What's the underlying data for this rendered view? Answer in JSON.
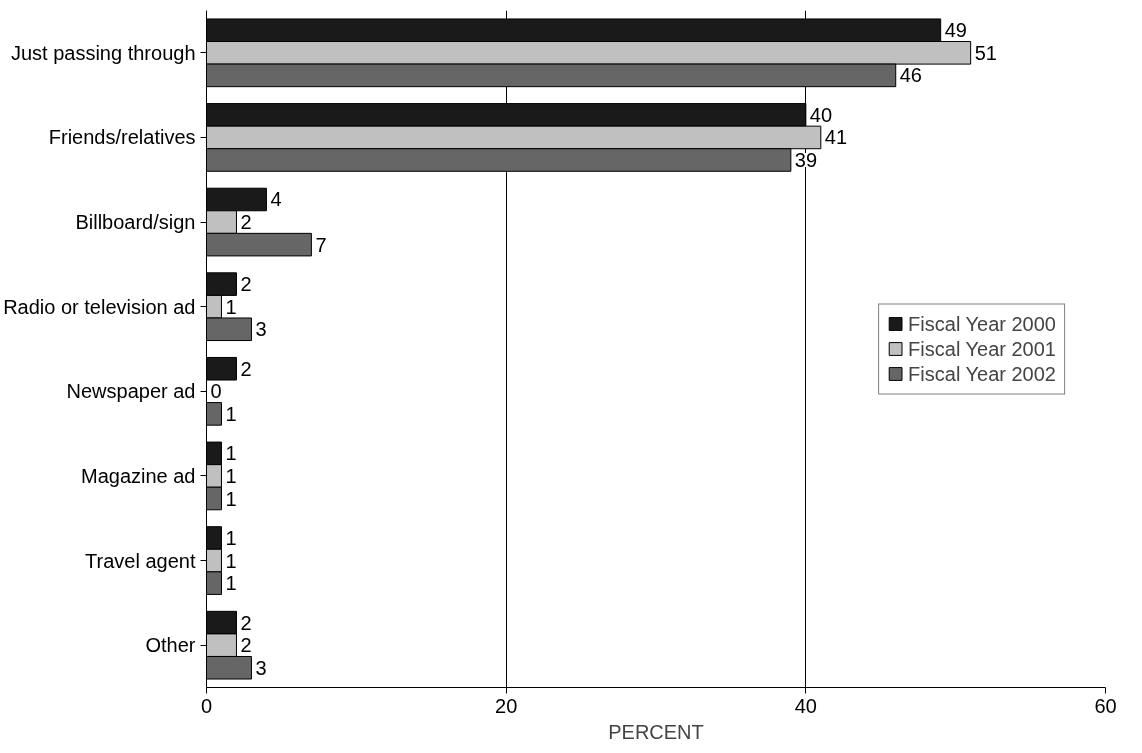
{
  "chart_data": {
    "type": "bar",
    "orientation": "horizontal",
    "xlabel": "PERCENT",
    "categories": [
      "Just passing through",
      "Friends/relatives",
      "Billboard/sign",
      "Radio or television ad",
      "Newspaper ad",
      "Magazine ad",
      "Travel agent",
      "Other"
    ],
    "series": [
      {
        "name": "Fiscal Year 2000",
        "color": "#1a1a1a",
        "values": [
          49,
          40,
          4,
          2,
          2,
          1,
          1,
          2
        ]
      },
      {
        "name": "Fiscal Year 2001",
        "color": "#c0c0c0",
        "values": [
          51,
          41,
          2,
          1,
          0,
          1,
          1,
          2
        ]
      },
      {
        "name": "Fiscal Year 2002",
        "color": "#666666",
        "values": [
          46,
          39,
          7,
          3,
          1,
          1,
          1,
          3
        ]
      }
    ],
    "xlim": [
      0,
      60
    ],
    "xticks": [
      0,
      20,
      40,
      60
    ],
    "grid": "x",
    "legend": "right",
    "data_labels": true
  }
}
